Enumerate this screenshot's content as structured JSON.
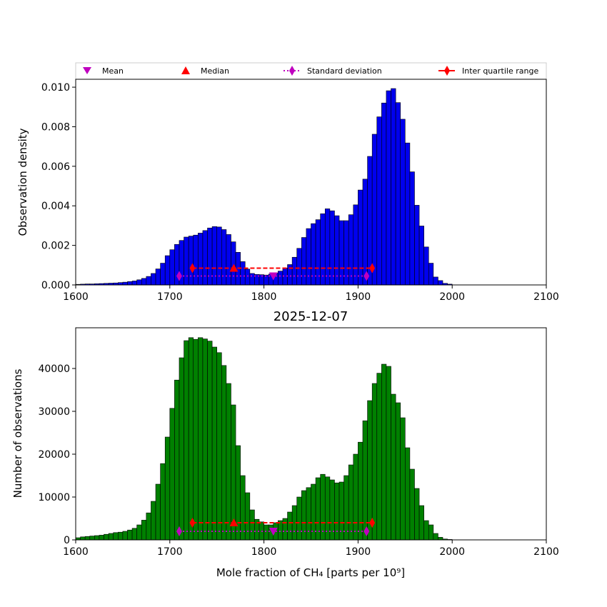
{
  "chart_data": [
    {
      "type": "bar",
      "title": "",
      "xlabel": "",
      "ylabel": "Observation density",
      "xlim": [
        1600,
        2100
      ],
      "ylim": [
        0,
        0.0104
      ],
      "xticks": [
        "1600",
        "1700",
        "1800",
        "1900",
        "2000",
        "2100"
      ],
      "yticks": [
        "0.000",
        "0.002",
        "0.004",
        "0.006",
        "0.008",
        "0.010"
      ],
      "bin_start": 1600,
      "bin_width": 5,
      "bar_color": "#0000ee",
      "values": [
        3e-05,
        4e-05,
        5e-05,
        5e-05,
        6e-05,
        7e-05,
        8e-05,
        9e-05,
        0.0001,
        0.00012,
        0.00014,
        0.00017,
        0.0002,
        0.00026,
        0.00033,
        0.00043,
        0.00058,
        0.00081,
        0.0011,
        0.00148,
        0.00178,
        0.00205,
        0.00225,
        0.00242,
        0.00247,
        0.00252,
        0.00262,
        0.00275,
        0.00288,
        0.00295,
        0.00293,
        0.0028,
        0.00255,
        0.00218,
        0.00165,
        0.00118,
        0.0008,
        0.00058,
        0.00053,
        0.00052,
        0.0005,
        0.00055,
        0.0006,
        0.0007,
        0.00085,
        0.00103,
        0.0014,
        0.00185,
        0.0024,
        0.00285,
        0.0031,
        0.0033,
        0.0036,
        0.00385,
        0.00375,
        0.0035,
        0.00325,
        0.00325,
        0.00355,
        0.00405,
        0.0048,
        0.00535,
        0.0065,
        0.00762,
        0.0085,
        0.0092,
        0.00982,
        0.00993,
        0.00922,
        0.00838,
        0.00718,
        0.00572,
        0.00403,
        0.00298,
        0.00192,
        0.0011,
        0.0004,
        0.00022,
        8e-05,
        4e-05
      ],
      "stats": {
        "mean": {
          "x": 1810,
          "y": 0.00045
        },
        "median": {
          "x": 1768,
          "y": 0.00085
        },
        "std": {
          "x1": 1710,
          "x2": 1909,
          "y": 0.00045
        },
        "iqr": {
          "x1": 1724,
          "x2": 1915,
          "y": 0.00085
        }
      }
    },
    {
      "type": "bar",
      "title": "2025-12-07",
      "xlabel": "Mole fraction of CH₄ [parts per 10⁹]",
      "ylabel": "Number of observations",
      "xlim": [
        1600,
        2100
      ],
      "ylim": [
        0,
        49500
      ],
      "xticks": [
        "1600",
        "1700",
        "1800",
        "1900",
        "2000",
        "2100"
      ],
      "yticks": [
        "0",
        "10000",
        "20000",
        "30000",
        "40000"
      ],
      "bin_start": 1600,
      "bin_width": 5,
      "bar_color": "#008000",
      "values": [
        500,
        700,
        800,
        900,
        1000,
        1100,
        1300,
        1500,
        1700,
        1800,
        2000,
        2300,
        2700,
        3500,
        4600,
        6300,
        9000,
        13000,
        17800,
        24000,
        30700,
        37300,
        42500,
        46500,
        47200,
        46800,
        47200,
        46900,
        46400,
        45000,
        43700,
        40700,
        36500,
        31500,
        22000,
        15000,
        11000,
        7000,
        4800,
        4200,
        3500,
        3500,
        4000,
        4500,
        5000,
        6500,
        8000,
        10000,
        11500,
        12200,
        13000,
        14500,
        15300,
        14700,
        14000,
        13300,
        13500,
        15000,
        17500,
        20000,
        22800,
        27800,
        32500,
        36500,
        38900,
        41000,
        40500,
        34000,
        32000,
        28500,
        21500,
        16500,
        12000,
        8000,
        4500,
        3500,
        1500,
        600,
        200,
        100
      ],
      "stats": {
        "mean": {
          "x": 1810,
          "y": 2000
        },
        "median": {
          "x": 1768,
          "y": 4000
        },
        "std": {
          "x1": 1710,
          "x2": 1909,
          "y": 2000
        },
        "iqr": {
          "x1": 1724,
          "x2": 1915,
          "y": 4000
        }
      }
    }
  ],
  "legend": {
    "mean": "Mean",
    "median": "Median",
    "std": "Standard deviation",
    "iqr": "Inter quartile range"
  },
  "colors": {
    "mean": "#bf00bf",
    "median": "#ff0000",
    "std": "#bf00bf",
    "iqr": "#ff0000"
  }
}
